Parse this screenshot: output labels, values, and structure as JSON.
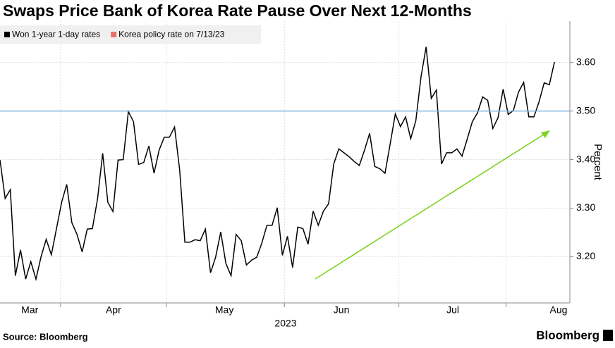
{
  "chart_data": {
    "type": "line",
    "title": "Swaps Price Bank of Korea Rate Pause Over Next 12-Months",
    "source": "Source: Bloomberg",
    "brand": "Bloomberg",
    "ylabel": "Percent",
    "xlabel": "2023",
    "xlim": [
      0,
      111
    ],
    "xticks": [
      {
        "value": 5.8,
        "label": "Mar"
      },
      {
        "value": 22.1,
        "label": "Apr"
      },
      {
        "value": 43.7,
        "label": "May"
      },
      {
        "value": 66.5,
        "label": "Jun"
      },
      {
        "value": 88.2,
        "label": "Jul"
      },
      {
        "value": 108.8,
        "label": "Aug"
      }
    ],
    "xgrid": [
      11.8,
      32.4,
      55.4,
      77.7,
      98.6
    ],
    "ylim": [
      3.105,
      3.685
    ],
    "yticks": [
      {
        "value": 3.2,
        "label": "3.20"
      },
      {
        "value": 3.3,
        "label": "3.30"
      },
      {
        "value": 3.4,
        "label": "3.40"
      },
      {
        "value": 3.5,
        "label": "3.50"
      },
      {
        "value": 3.6,
        "label": "3.60"
      }
    ],
    "grid": true,
    "series": [
      {
        "name": "Won 1-year 1-day rates",
        "color": "#000000",
        "values": [
          3.399,
          3.32,
          3.338,
          3.161,
          3.214,
          3.154,
          3.19,
          3.154,
          3.2,
          3.236,
          3.204,
          3.258,
          3.312,
          3.349,
          3.27,
          3.246,
          3.21,
          3.257,
          3.258,
          3.319,
          3.413,
          3.312,
          3.293,
          3.399,
          3.4,
          3.499,
          3.478,
          3.39,
          3.394,
          3.428,
          3.372,
          3.42,
          3.446,
          3.446,
          3.467,
          3.378,
          3.23,
          3.23,
          3.235,
          3.233,
          3.257,
          3.167,
          3.199,
          3.251,
          3.186,
          3.161,
          3.246,
          3.233,
          3.183,
          3.193,
          3.199,
          3.228,
          3.265,
          3.265,
          3.301,
          3.203,
          3.242,
          3.178,
          3.261,
          3.258,
          3.226,
          3.294,
          3.265,
          3.294,
          3.309,
          3.391,
          3.422,
          3.414,
          3.406,
          3.396,
          3.388,
          3.419,
          3.454,
          3.386,
          3.381,
          3.372,
          3.432,
          3.494,
          3.468,
          3.488,
          3.443,
          3.48,
          3.57,
          3.632,
          3.526,
          3.543,
          3.391,
          3.414,
          3.414,
          3.422,
          3.407,
          3.442,
          3.478,
          3.496,
          3.529,
          3.522,
          3.464,
          3.486,
          3.545,
          3.493,
          3.501,
          3.539,
          3.559,
          3.488,
          3.488,
          3.519,
          3.558,
          3.554,
          3.601
        ]
      },
      {
        "name": "Korea policy rate on 7/13/23",
        "color": "#e8706a",
        "line_color": "#7fb6e6",
        "value": 3.5
      }
    ]
  }
}
